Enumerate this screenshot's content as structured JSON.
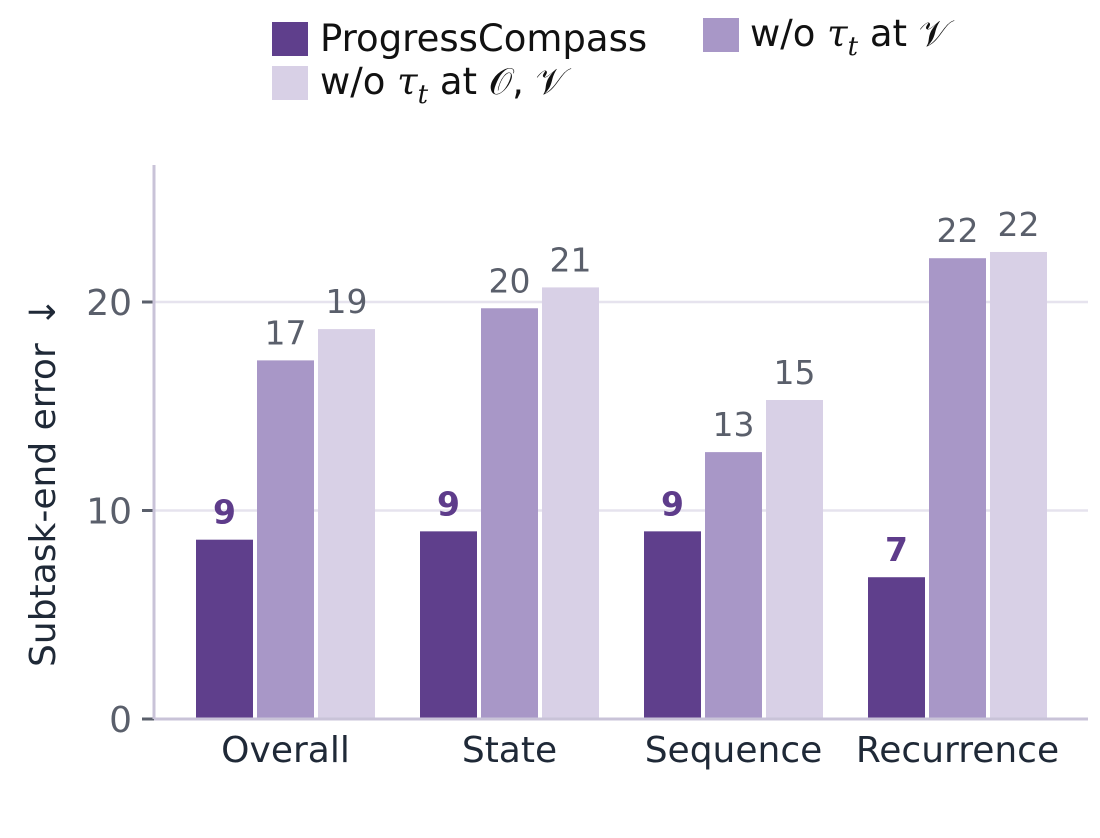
{
  "chart_data": {
    "type": "bar",
    "categories": [
      "Overall",
      "State",
      "Sequence",
      "Recurrence"
    ],
    "ylabel": "Subtask-end error",
    "ylabel_arrow": "↓",
    "ylim": [
      0,
      26
    ],
    "yticks": [
      0,
      10,
      20
    ],
    "grid": true,
    "legend_position": "top",
    "series": [
      {
        "name": "ProgressCompass",
        "legend_text": "ProgressCompass",
        "color": "#5f3f8c",
        "values": [
          8.6,
          9.0,
          9.0,
          6.8
        ],
        "labels": [
          "9",
          "9",
          "9",
          "7"
        ],
        "highlight": true
      },
      {
        "name": "w/o τt at 𝒱",
        "legend_prefix": "w/o ",
        "legend_math": "τ",
        "legend_sub": "t",
        "legend_suffix": " at 𝒱",
        "color": "#a897c7",
        "values": [
          17.2,
          19.7,
          12.8,
          22.1
        ],
        "labels": [
          "17",
          "20",
          "13",
          "22"
        ]
      },
      {
        "name": "w/o τt at 𝒪, 𝒱",
        "legend_prefix": "w/o ",
        "legend_math": "τ",
        "legend_sub": "t",
        "legend_suffix": " at 𝒪, 𝒱",
        "color": "#d8d0e6",
        "values": [
          18.7,
          20.7,
          15.3,
          22.4
        ],
        "labels": [
          "19",
          "21",
          "15",
          "22"
        ]
      }
    ],
    "colors": {
      "axis": "#c9c3d8",
      "grid": "#e6e3ee"
    }
  }
}
